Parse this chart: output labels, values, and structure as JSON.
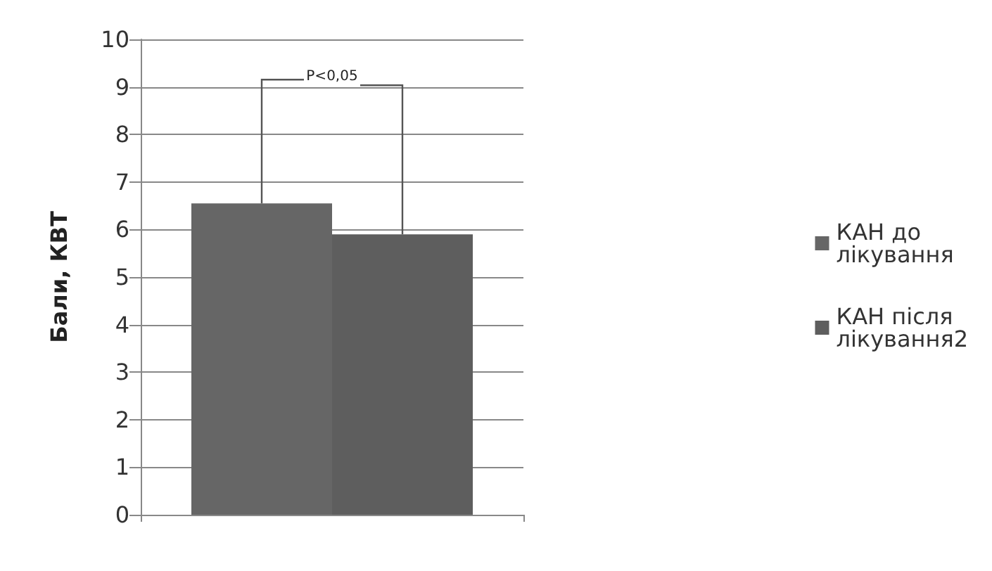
{
  "chart_data": {
    "type": "bar",
    "ylabel": "Бали, КВТ",
    "categories": [
      null
    ],
    "series": [
      {
        "name": "КАН до лікування",
        "color": "#666666",
        "values": [
          6.55
        ]
      },
      {
        "name": "КАН після лікування2",
        "color": "#5e5e5e",
        "values": [
          5.9
        ]
      }
    ],
    "ylim": [
      0,
      10
    ],
    "yticks": [
      0,
      1,
      2,
      3,
      4,
      5,
      6,
      7,
      8,
      9,
      10
    ],
    "grid": "y",
    "legend": "right",
    "annotations": [
      "P<0,05"
    ]
  }
}
